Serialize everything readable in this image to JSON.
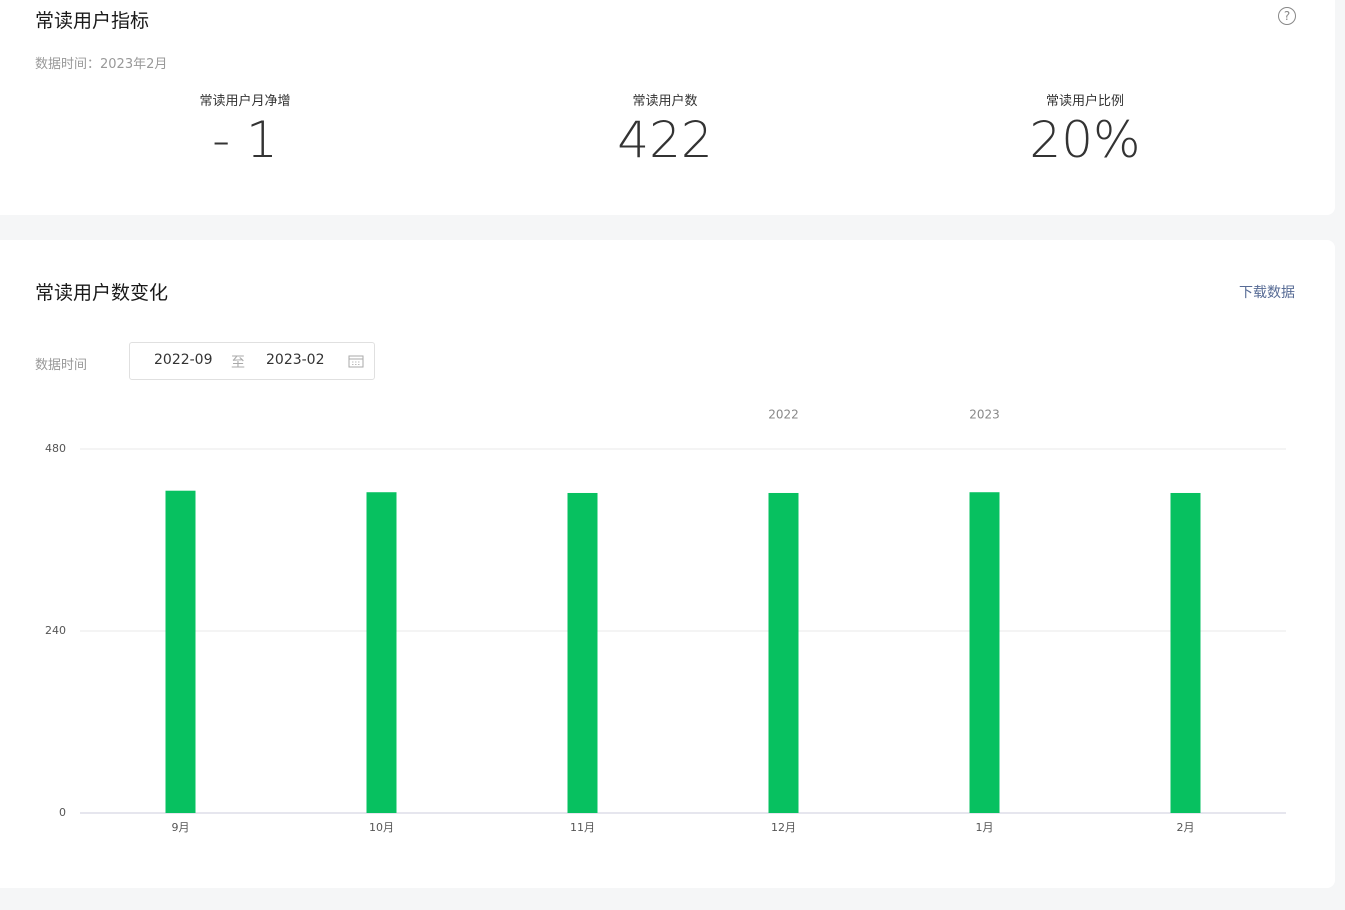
{
  "summary": {
    "title": "常读用户指标",
    "subtitle": "数据时间：2023年2月",
    "help": "?",
    "metrics": [
      {
        "label": "常读用户月净增",
        "value": "- 1"
      },
      {
        "label": "常读用户数",
        "value": "422"
      },
      {
        "label": "常读用户比例",
        "value": "20%"
      }
    ]
  },
  "trend": {
    "title": "常读用户数变化",
    "download": "下载数据",
    "date_label": "数据时间",
    "start": "2022-09",
    "separator": "至",
    "end": "2023-02"
  },
  "chart_data": {
    "type": "bar",
    "categories": [
      "9月",
      "10月",
      "11月",
      "12月",
      "1月",
      "2月"
    ],
    "year_labels": [
      null,
      null,
      null,
      "2022",
      "2023",
      null
    ],
    "values": [
      425,
      423,
      422,
      422,
      423,
      422
    ],
    "color": "#07c160",
    "ylim": [
      0,
      480
    ],
    "yticks": [
      0,
      240,
      480
    ],
    "grid": true
  }
}
